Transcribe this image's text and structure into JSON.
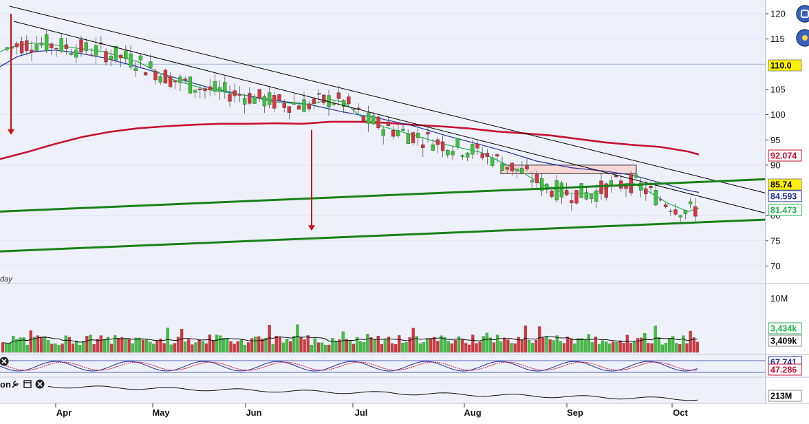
{
  "chart_data": {
    "type": "candlestick",
    "period_label": "day",
    "price_axis": {
      "ticks": [
        120,
        115,
        105,
        100,
        95,
        90,
        80,
        75,
        70
      ],
      "range": [
        66.6,
        122.6
      ]
    },
    "x_axis": {
      "months": [
        "Apr",
        "May",
        "Jun",
        "Jul",
        "Aug",
        "Sep",
        "Oct"
      ]
    },
    "price_tags": [
      {
        "label": "110.0",
        "value": 110.0,
        "bg": "#fff200",
        "fg": "#000000",
        "border": "#888888"
      },
      {
        "label": "92.074",
        "value": 92.074,
        "bg": "#ffffff",
        "fg": "#c8102e",
        "border": "#c8102e"
      },
      {
        "label": "85.74",
        "value": 85.74,
        "bg": "#fff200",
        "fg": "#000000",
        "border": "#888888"
      },
      {
        "label": "84.593",
        "value": 84.593,
        "bg": "#ffffff",
        "fg": "#1f2fa0",
        "border": "#1f2fa0"
      },
      {
        "label": "81.473",
        "value": 81.473,
        "bg": "#ffffff",
        "fg": "#22b14c",
        "border": "#22b14c"
      }
    ],
    "horizontal_line": {
      "value": 110.0,
      "color": "#9fb6d0"
    },
    "moving_averages": [
      {
        "color": "#c8102e",
        "last": 92.074,
        "points": [
          [
            0,
            91.2
          ],
          [
            40,
            92.6
          ],
          [
            80,
            94.2
          ],
          [
            120,
            95.6
          ],
          [
            160,
            96.6
          ],
          [
            200,
            97.3
          ],
          [
            240,
            97.7
          ],
          [
            280,
            98.0
          ],
          [
            320,
            98.2
          ],
          [
            360,
            98.2
          ],
          [
            400,
            98.3
          ],
          [
            440,
            98.2
          ],
          [
            480,
            98.6
          ],
          [
            520,
            98.6
          ],
          [
            560,
            98.4
          ],
          [
            600,
            98.0
          ],
          [
            640,
            97.7
          ],
          [
            680,
            97.3
          ],
          [
            720,
            96.7
          ],
          [
            760,
            96.3
          ],
          [
            800,
            95.9
          ],
          [
            840,
            95.2
          ],
          [
            880,
            94.5
          ],
          [
            920,
            94.0
          ],
          [
            960,
            93.6
          ],
          [
            1000,
            92.7
          ],
          [
            1016,
            92.1
          ]
        ]
      },
      {
        "color": "#1f2fa0",
        "last": 84.593,
        "points": [
          [
            0,
            109.5
          ],
          [
            25,
            111.5
          ],
          [
            50,
            112.5
          ],
          [
            80,
            112.8
          ],
          [
            110,
            112.3
          ],
          [
            150,
            111.3
          ],
          [
            200,
            109.5
          ],
          [
            250,
            107.5
          ],
          [
            300,
            105.5
          ],
          [
            350,
            104.0
          ],
          [
            400,
            102.8
          ],
          [
            450,
            102.0
          ],
          [
            500,
            100.5
          ],
          [
            550,
            99.3
          ],
          [
            600,
            97.8
          ],
          [
            650,
            95.8
          ],
          [
            700,
            94.0
          ],
          [
            740,
            92.5
          ],
          [
            780,
            90.8
          ],
          [
            830,
            89.5
          ],
          [
            880,
            88.8
          ],
          [
            920,
            88.0
          ],
          [
            960,
            86.5
          ],
          [
            1000,
            85.0
          ],
          [
            1016,
            84.6
          ]
        ]
      },
      {
        "color": "#22b14c",
        "last": 81.473,
        "points": [
          [
            0,
            112.5
          ],
          [
            25,
            113.8
          ],
          [
            50,
            114.2
          ],
          [
            80,
            113.8
          ],
          [
            110,
            113.2
          ],
          [
            150,
            112.5
          ],
          [
            200,
            110.5
          ],
          [
            250,
            107.0
          ],
          [
            300,
            105.0
          ],
          [
            350,
            104.0
          ],
          [
            400,
            102.5
          ],
          [
            450,
            102.0
          ],
          [
            480,
            103.0
          ],
          [
            500,
            102.5
          ],
          [
            530,
            99.0
          ],
          [
            560,
            97.5
          ],
          [
            600,
            96.0
          ],
          [
            650,
            94.0
          ],
          [
            700,
            92.5
          ],
          [
            730,
            90.5
          ],
          [
            760,
            88.5
          ],
          [
            790,
            86.0
          ],
          [
            820,
            84.5
          ],
          [
            860,
            84.3
          ],
          [
            890,
            86.0
          ],
          [
            920,
            86.5
          ],
          [
            940,
            85.0
          ],
          [
            970,
            82.5
          ],
          [
            1000,
            80.8
          ],
          [
            1016,
            81.5
          ]
        ]
      }
    ],
    "trendlines": [
      {
        "color": "#000000",
        "width": 1,
        "from": [
          14,
          121.5
        ],
        "to": [
          1112,
          84.5
        ]
      },
      {
        "color": "#000000",
        "width": 1,
        "from": [
          20,
          118.5
        ],
        "to": [
          1112,
          80.5
        ]
      },
      {
        "color": "#1a7f1a",
        "width": 3,
        "from": [
          0,
          80.8
        ],
        "to": [
          1112,
          87.2
        ]
      },
      {
        "color": "#1a7f1a",
        "width": 3,
        "from": [
          0,
          72.9
        ],
        "to": [
          1112,
          79.2
        ]
      }
    ],
    "arrows": [
      {
        "x": 16,
        "from": 120.0,
        "to": 96.0,
        "color": "#cc1111"
      },
      {
        "x": 453,
        "from": 97.0,
        "to": 77.0,
        "color": "#cc1111"
      }
    ],
    "zone": {
      "x1": 728,
      "x2": 925,
      "y1": 88.3,
      "y2": 90.0,
      "fill": "#f8d6d6",
      "stroke": "#333333"
    },
    "volume_panel": {
      "ticks": [
        "10M"
      ],
      "max": 11500000,
      "tags": [
        {
          "label": "3,434k",
          "value": 3434000,
          "bg": "#ffffff",
          "fg": "#22b14c",
          "border": "#22b14c"
        },
        {
          "label": "3,409k",
          "value": 3409000,
          "bg": "#ffffff",
          "fg": "#000000",
          "border": "#888888"
        }
      ]
    },
    "oscillator_panel": {
      "tags": [
        {
          "label": "67.741",
          "bg": "#ffffff",
          "fg": "#1f2fa0",
          "border": "#1f2fa0"
        },
        {
          "label": "47.286",
          "bg": "#ffffff",
          "fg": "#c8102e",
          "border": "#c8102e"
        }
      ]
    },
    "bottom_panel": {
      "label": "on",
      "tag": {
        "label": "213M",
        "bg": "#ffffff",
        "fg": "#000000",
        "border": "#888888"
      }
    },
    "colors": {
      "up": "#3cc33c",
      "down": "#d8343c",
      "background": "#eef1fa",
      "grid": "#d9def0"
    }
  }
}
